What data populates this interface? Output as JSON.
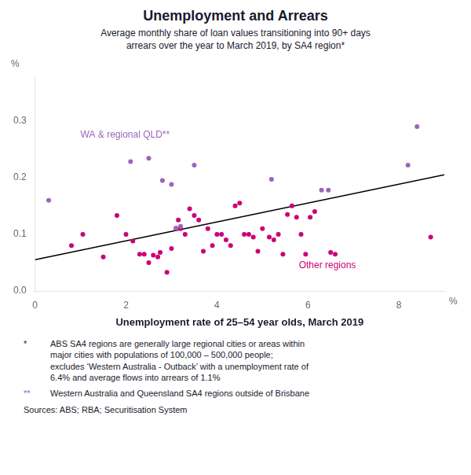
{
  "chart_data": {
    "type": "scatter",
    "title": "Unemployment and Arrears",
    "subtitle": "Average monthly share of loan values transitioning into 90+ days\narrears over the year to March 2019, by SA4 region*",
    "xlabel": "Unemployment rate of 25–54 year olds, March 2019",
    "ylabel": "%",
    "xlabel_unit": "%",
    "xlim": [
      0,
      9
    ],
    "ylim": [
      0.0,
      0.38
    ],
    "xticks": [
      0,
      2,
      4,
      6,
      8
    ],
    "yticks": [
      {
        "value": 0.0,
        "label": "0.0"
      },
      0.1,
      0.2,
      0.3
    ],
    "grid": false,
    "series": [
      {
        "type": "line",
        "color": "#000000",
        "x": [
          0,
          9
        ],
        "values": [
          0.055,
          0.205
        ]
      },
      {
        "type": "scatter",
        "color": "#9966BB",
        "x": [
          0.3,
          2.1,
          2.5,
          2.8,
          3.0,
          3.1,
          3.2,
          3.5,
          5.2,
          6.3,
          6.45,
          8.2,
          8.4
        ],
        "values": [
          0.16,
          0.228,
          0.234,
          0.195,
          0.188,
          0.111,
          0.114,
          0.222,
          0.197,
          0.178,
          0.178,
          0.222,
          0.29
        ]
      },
      {
        "type": "scatter",
        "color": "#CC0077",
        "x": [
          0.8,
          1.05,
          1.5,
          1.8,
          2.0,
          2.15,
          2.3,
          2.4,
          2.5,
          2.6,
          2.7,
          2.75,
          2.9,
          3.0,
          3.1,
          3.15,
          3.2,
          3.3,
          3.4,
          3.5,
          3.6,
          3.7,
          3.8,
          3.9,
          4.0,
          4.1,
          4.2,
          4.3,
          4.4,
          4.5,
          4.6,
          4.7,
          4.8,
          4.9,
          5.0,
          5.15,
          5.25,
          5.35,
          5.45,
          5.55,
          5.65,
          5.75,
          5.85,
          5.95,
          6.05,
          6.15,
          6.5,
          6.6,
          8.7
        ],
        "values": [
          0.08,
          0.1,
          0.06,
          0.133,
          0.1,
          0.088,
          0.065,
          0.065,
          0.05,
          0.063,
          0.06,
          0.068,
          0.033,
          0.075,
          0.11,
          0.125,
          0.11,
          0.1,
          0.145,
          0.133,
          0.125,
          0.07,
          0.11,
          0.08,
          0.1,
          0.1,
          0.09,
          0.08,
          0.15,
          0.155,
          0.1,
          0.1,
          0.095,
          0.07,
          0.11,
          0.095,
          0.09,
          0.1,
          0.065,
          0.135,
          0.15,
          0.13,
          0.1,
          0.065,
          0.13,
          0.14,
          0.068,
          0.065,
          0.095
        ]
      }
    ],
    "annotations": [
      {
        "text": "WA & regional QLD**",
        "x": 1.0,
        "y": 0.275,
        "color": "#9966BB"
      },
      {
        "text": "Other regions",
        "x": 5.8,
        "y": 0.045,
        "color": "#CC0077"
      }
    ],
    "footnotes": [
      {
        "marker": "*",
        "text": "ABS SA4 regions are generally large regional cities or areas within\nmajor cities with populations of 100,000 – 500,000 people;\nexcludes ‘Western Australia - Outback’ with a unemployment rate of\n6.4% and average flows into arrears of 1.1%"
      },
      {
        "marker": "**",
        "text": "Western Australia and Queensland SA4 regions outside of Brisbane",
        "color": "#9966BB"
      }
    ],
    "source": "Sources: ABS; RBA; Securitisation System"
  }
}
